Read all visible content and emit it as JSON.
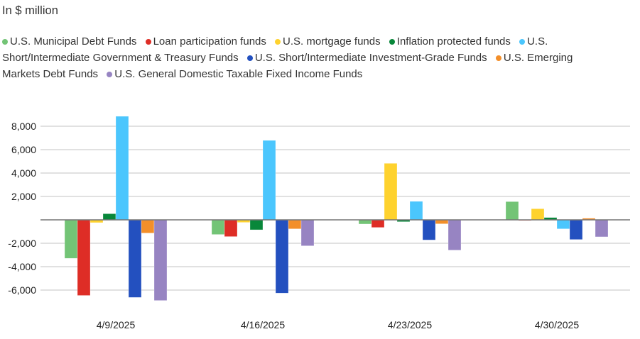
{
  "chart_data": {
    "type": "bar",
    "title": "In $ million",
    "xlabel": "",
    "ylabel": "",
    "ylim": [
      -7000,
      9000
    ],
    "yticks": [
      8000,
      6000,
      4000,
      2000,
      -2000,
      -4000,
      -6000
    ],
    "ytick_labels": [
      "8,000",
      "6,000",
      "4,000",
      "2,000",
      "-2,000",
      "-4,000",
      "-6,000"
    ],
    "grid": true,
    "legend_position": "top",
    "categories": [
      "4/9/2025",
      "4/16/2025",
      "4/23/2025",
      "4/30/2025"
    ],
    "series": [
      {
        "name": "U.S. Municipal Debt Funds",
        "color": "#73c476",
        "values": [
          -3290,
          -1250,
          -360,
          1560
        ]
      },
      {
        "name": "Loan participation funds",
        "color": "#de2d26",
        "values": [
          -6460,
          -1430,
          -650,
          -50
        ]
      },
      {
        "name": "U.S. mortgage funds",
        "color": "#fed22e",
        "values": [
          -240,
          -220,
          4830,
          950
        ]
      },
      {
        "name": "Inflation protected funds",
        "color": "#08873a",
        "values": [
          525,
          -850,
          -160,
          200
        ]
      },
      {
        "name": "U.S. Short/Intermediate Government & Treasury Funds",
        "color": "#4bc6fd",
        "values": [
          8850,
          6790,
          1580,
          -770
        ]
      },
      {
        "name": "U.S. Short/Intermediate Investment-Grade Funds",
        "color": "#2350bf",
        "values": [
          -6630,
          -6260,
          -1720,
          -1680
        ]
      },
      {
        "name": "U.S. Emerging Markets Debt Funds",
        "color": "#f38f2a",
        "values": [
          -1130,
          -770,
          -340,
          140
        ]
      },
      {
        "name": "U.S. General Domestic Taxable Fixed Income Funds",
        "color": "#9784c2",
        "values": [
          -6890,
          -2220,
          -2590,
          -1450
        ]
      }
    ]
  }
}
